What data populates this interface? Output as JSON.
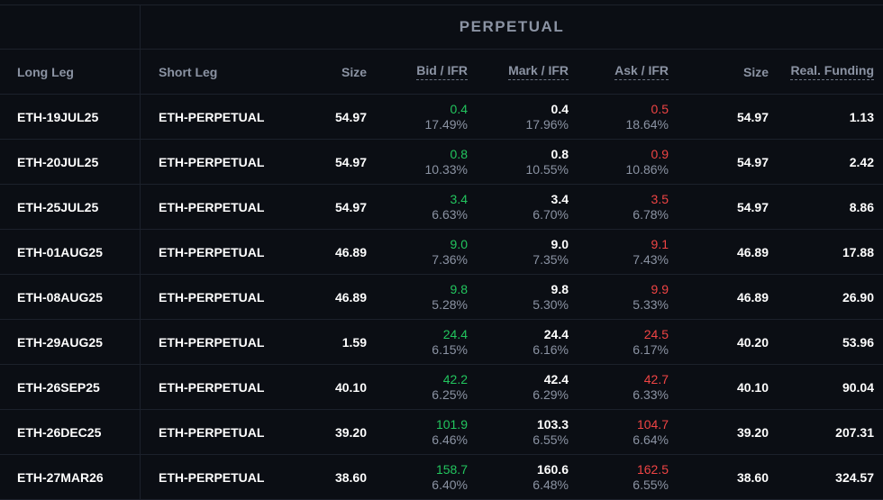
{
  "group_title": "PERPETUAL",
  "headers": {
    "long_leg": "Long Leg",
    "short_leg": "Short Leg",
    "size": "Size",
    "bid": "Bid / IFR",
    "mark": "Mark / IFR",
    "ask": "Ask / IFR",
    "size2": "Size",
    "funding": "Real. Funding"
  },
  "colors": {
    "bid": "#22c55e",
    "ask": "#ef4444",
    "muted": "#8b93a3",
    "background": "#0b0e14"
  },
  "rows": [
    {
      "long": "ETH-19JUL25",
      "short": "ETH-PERPETUAL",
      "size": "54.97",
      "bid": "0.4",
      "bid_ifr": "17.49%",
      "mark": "0.4",
      "mark_ifr": "17.96%",
      "ask": "0.5",
      "ask_ifr": "18.64%",
      "size2": "54.97",
      "funding": "1.13"
    },
    {
      "long": "ETH-20JUL25",
      "short": "ETH-PERPETUAL",
      "size": "54.97",
      "bid": "0.8",
      "bid_ifr": "10.33%",
      "mark": "0.8",
      "mark_ifr": "10.55%",
      "ask": "0.9",
      "ask_ifr": "10.86%",
      "size2": "54.97",
      "funding": "2.42"
    },
    {
      "long": "ETH-25JUL25",
      "short": "ETH-PERPETUAL",
      "size": "54.97",
      "bid": "3.4",
      "bid_ifr": "6.63%",
      "mark": "3.4",
      "mark_ifr": "6.70%",
      "ask": "3.5",
      "ask_ifr": "6.78%",
      "size2": "54.97",
      "funding": "8.86"
    },
    {
      "long": "ETH-01AUG25",
      "short": "ETH-PERPETUAL",
      "size": "46.89",
      "bid": "9.0",
      "bid_ifr": "7.36%",
      "mark": "9.0",
      "mark_ifr": "7.35%",
      "ask": "9.1",
      "ask_ifr": "7.43%",
      "size2": "46.89",
      "funding": "17.88"
    },
    {
      "long": "ETH-08AUG25",
      "short": "ETH-PERPETUAL",
      "size": "46.89",
      "bid": "9.8",
      "bid_ifr": "5.28%",
      "mark": "9.8",
      "mark_ifr": "5.30%",
      "ask": "9.9",
      "ask_ifr": "5.33%",
      "size2": "46.89",
      "funding": "26.90"
    },
    {
      "long": "ETH-29AUG25",
      "short": "ETH-PERPETUAL",
      "size": "1.59",
      "bid": "24.4",
      "bid_ifr": "6.15%",
      "mark": "24.4",
      "mark_ifr": "6.16%",
      "ask": "24.5",
      "ask_ifr": "6.17%",
      "size2": "40.20",
      "funding": "53.96"
    },
    {
      "long": "ETH-26SEP25",
      "short": "ETH-PERPETUAL",
      "size": "40.10",
      "bid": "42.2",
      "bid_ifr": "6.25%",
      "mark": "42.4",
      "mark_ifr": "6.29%",
      "ask": "42.7",
      "ask_ifr": "6.33%",
      "size2": "40.10",
      "funding": "90.04"
    },
    {
      "long": "ETH-26DEC25",
      "short": "ETH-PERPETUAL",
      "size": "39.20",
      "bid": "101.9",
      "bid_ifr": "6.46%",
      "mark": "103.3",
      "mark_ifr": "6.55%",
      "ask": "104.7",
      "ask_ifr": "6.64%",
      "size2": "39.20",
      "funding": "207.31"
    },
    {
      "long": "ETH-27MAR26",
      "short": "ETH-PERPETUAL",
      "size": "38.60",
      "bid": "158.7",
      "bid_ifr": "6.40%",
      "mark": "160.6",
      "mark_ifr": "6.48%",
      "ask": "162.5",
      "ask_ifr": "6.55%",
      "size2": "38.60",
      "funding": "324.57"
    }
  ]
}
